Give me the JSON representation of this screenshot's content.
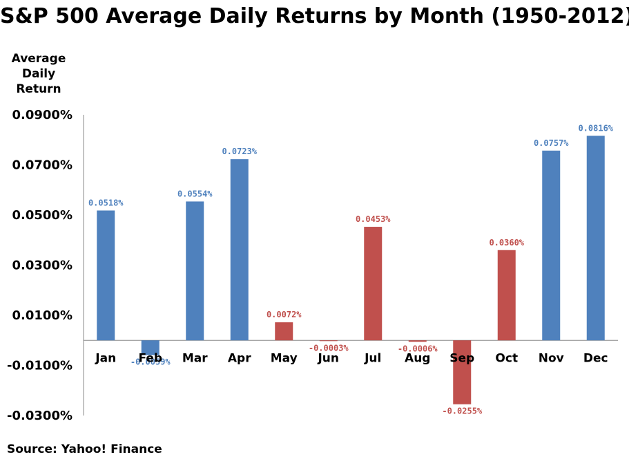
{
  "chart_data": {
    "type": "bar",
    "title": "S&P 500 Average Daily Returns by Month (1950-2012)",
    "ylabel": [
      "Average",
      "Daily",
      "Return"
    ],
    "xlabel": "",
    "source": "Source: Yahoo! Finance",
    "ylim": [
      -0.03,
      0.09
    ],
    "yticks": [
      0.09,
      0.07,
      0.05,
      0.03,
      0.01,
      -0.01,
      -0.03
    ],
    "ytick_labels": [
      "0.0900%",
      "0.0700%",
      "0.0500%",
      "0.0300%",
      "0.0100%",
      "-0.0100%",
      "-0.0300%"
    ],
    "categories": [
      "Jan",
      "Feb",
      "Mar",
      "Apr",
      "May",
      "Jun",
      "Jul",
      "Aug",
      "Sep",
      "Oct",
      "Nov",
      "Dec"
    ],
    "values": [
      0.0518,
      -0.0059,
      0.0554,
      0.0723,
      0.0072,
      -0.0003,
      0.0453,
      -0.0006,
      -0.0255,
      0.036,
      0.0757,
      0.0816
    ],
    "data_labels": [
      "0.0518%",
      "-0.0059%",
      "0.0554%",
      "0.0723%",
      "0.0072%",
      "-0.0003%",
      "0.0453%",
      "-0.0006%",
      "-0.0255%",
      "0.0360%",
      "0.0757%",
      "0.0816%"
    ],
    "bar_colors": [
      "#4f81bd",
      "#4f81bd",
      "#4f81bd",
      "#4f81bd",
      "#c0504d",
      "#c0504d",
      "#c0504d",
      "#c0504d",
      "#c0504d",
      "#c0504d",
      "#4f81bd",
      "#4f81bd"
    ],
    "grid": false,
    "legend": "none"
  }
}
